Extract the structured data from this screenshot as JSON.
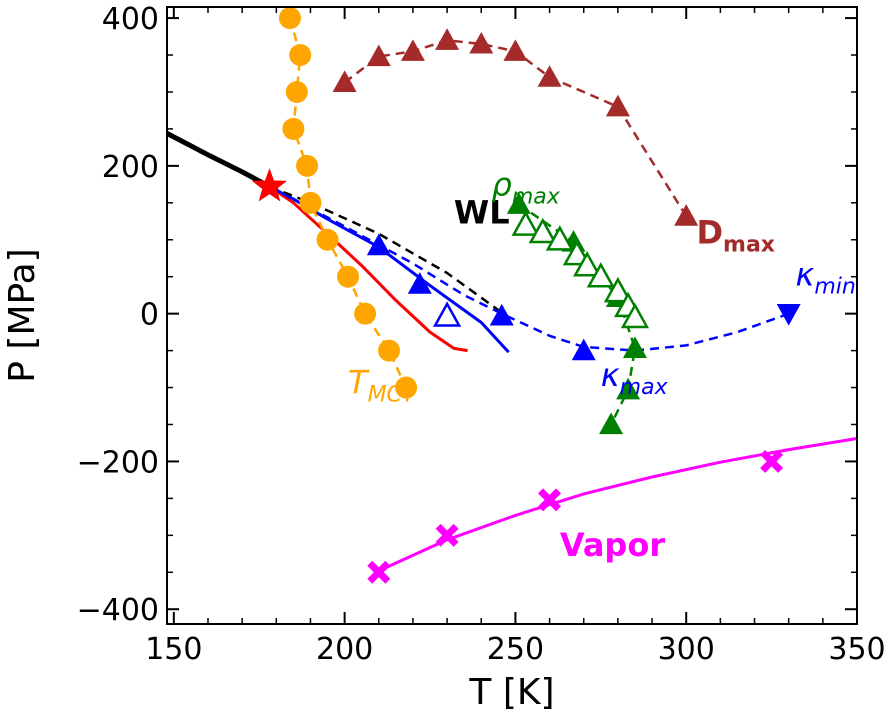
{
  "chart_data": {
    "type": "scatter",
    "title": "",
    "xlabel": "T [K]",
    "ylabel": "P [MPa]",
    "xlim": [
      148,
      350
    ],
    "ylim": [
      -420,
      415
    ],
    "x_ticks": [
      150,
      200,
      250,
      300,
      350
    ],
    "y_ticks": [
      -400,
      -200,
      0,
      200,
      400
    ],
    "x_tick_labels": [
      "150",
      "200",
      "250",
      "300",
      "350"
    ],
    "y_tick_labels": [
      "−400",
      "−200",
      "0",
      "200",
      "400"
    ],
    "critical_point": {
      "name": "LLCP",
      "x": 178,
      "y": 172,
      "color": "#ff0000"
    },
    "series": [
      {
        "name": "Widom line (black, solid)",
        "style": "line",
        "color": "#000000",
        "x": [
          148,
          160,
          170,
          178
        ],
        "y": [
          244,
          215,
          192,
          172
        ]
      },
      {
        "name": "Widom line (black, dashed)",
        "style": "dashed-line",
        "color": "#000000",
        "x": [
          178,
          190,
          210,
          230,
          245
        ],
        "y": [
          172,
          150,
          108,
          55,
          5
        ]
      },
      {
        "name": "Binodal (red)",
        "style": "line",
        "color": "#ff0000",
        "x": [
          178,
          185,
          195,
          205,
          215,
          225,
          232,
          236
        ],
        "y": [
          172,
          150,
          108,
          65,
          18,
          -25,
          -47,
          -50
        ]
      },
      {
        "name": "Spinodal (blue)",
        "style": "line",
        "color": "#0000ff",
        "x": [
          178,
          185,
          195,
          210,
          225,
          240,
          248
        ],
        "y": [
          172,
          155,
          128,
          90,
          38,
          -12,
          -52
        ]
      },
      {
        "name": "T_MCT",
        "label_main": "T",
        "label_sub": "MCT",
        "style": "dashed-markers",
        "marker": "circle",
        "color": "#ffa500",
        "x": [
          184,
          187,
          186,
          185,
          189,
          190,
          195,
          201,
          206,
          213,
          218
        ],
        "y": [
          400,
          350,
          300,
          250,
          200,
          150,
          100,
          50,
          0,
          -50,
          -100
        ]
      },
      {
        "name": "D_max",
        "label_main": "D",
        "label_sub": "max",
        "style": "dashed-markers",
        "marker": "triangle-up",
        "color": "#a52a2a",
        "x": [
          200,
          210,
          220,
          230,
          240,
          250,
          260,
          280,
          300
        ],
        "y": [
          313,
          348,
          355,
          370,
          365,
          355,
          320,
          280,
          132
        ]
      },
      {
        "name": "rho_max (filled)",
        "label_main": "ρ",
        "label_sub": "max",
        "style": "dashed-markers",
        "marker": "triangle-up",
        "color": "#008000",
        "x": [
          251,
          267,
          275,
          280,
          285,
          283,
          278
        ],
        "y": [
          148,
          97,
          50,
          22,
          -47,
          -103,
          -150
        ]
      },
      {
        "name": "rho_max (open)",
        "style": "markers",
        "marker": "triangle-up-open",
        "color": "#008000",
        "x": [
          253,
          258,
          263,
          268,
          271,
          275,
          280,
          283,
          285
        ],
        "y": [
          120,
          110,
          100,
          80,
          65,
          50,
          30,
          10,
          -5
        ]
      },
      {
        "name": "kappa_max",
        "label_main": "κ",
        "label_sub": "max",
        "style": "markers",
        "marker": "triangle-up",
        "color": "#0000ff",
        "x": [
          210,
          222,
          246,
          270
        ],
        "y": [
          92,
          40,
          -3,
          -50
        ]
      },
      {
        "name": "kappa_max (open)",
        "style": "markers",
        "marker": "triangle-up-open",
        "color": "#0000ff",
        "x": [
          230
        ],
        "y": [
          -3
        ]
      },
      {
        "name": "kappa_min",
        "label_main": "κ",
        "label_sub": "min",
        "style": "markers",
        "marker": "triangle-down",
        "color": "#0000ff",
        "x": [
          330
        ],
        "y": [
          0
        ]
      },
      {
        "name": "kappa dashed curve",
        "style": "dashed-curve",
        "color": "#0000ff",
        "x": [
          178,
          200,
          220,
          235,
          246,
          260,
          270,
          285,
          300,
          315,
          330
        ],
        "y": [
          172,
          118,
          68,
          25,
          0,
          -30,
          -45,
          -50,
          -43,
          -25,
          0
        ]
      },
      {
        "name": "Vapor",
        "label_main": "Vapor",
        "style": "markers",
        "marker": "cross",
        "color": "#ff00ff",
        "x": [
          210,
          230,
          260,
          325
        ],
        "y": [
          -350,
          -300,
          -252,
          -200
        ]
      },
      {
        "name": "Vapor fit",
        "style": "line",
        "color": "#ff00ff",
        "x": [
          210,
          230,
          250,
          270,
          290,
          310,
          330,
          350
        ],
        "y": [
          -348,
          -306,
          -273,
          -244,
          -221,
          -201,
          -184,
          -169
        ]
      }
    ],
    "annotations": [
      {
        "main": "WL",
        "sub": "",
        "color": "#000000",
        "bold": true,
        "x": 232,
        "y": 122
      },
      {
        "main": "ρ",
        "sub": "max",
        "color": "#008000",
        "bold": false,
        "x": 243,
        "y": 160
      },
      {
        "main": "D",
        "sub": "max",
        "color": "#a52a2a",
        "bold": true,
        "x": 303,
        "y": 95
      },
      {
        "main": "κ",
        "sub": "min",
        "color": "#0000ff",
        "bold": false,
        "x": 332,
        "y": 38
      },
      {
        "main": "κ",
        "sub": "max",
        "color": "#0000ff",
        "bold": false,
        "x": 275,
        "y": -98
      },
      {
        "main": "T",
        "sub": "MCT",
        "color": "#ffa500",
        "bold": false,
        "x": 201,
        "y": -108
      },
      {
        "main": "Vapor",
        "sub": "",
        "color": "#ff00ff",
        "bold": true,
        "x": 263,
        "y": -328
      }
    ]
  }
}
